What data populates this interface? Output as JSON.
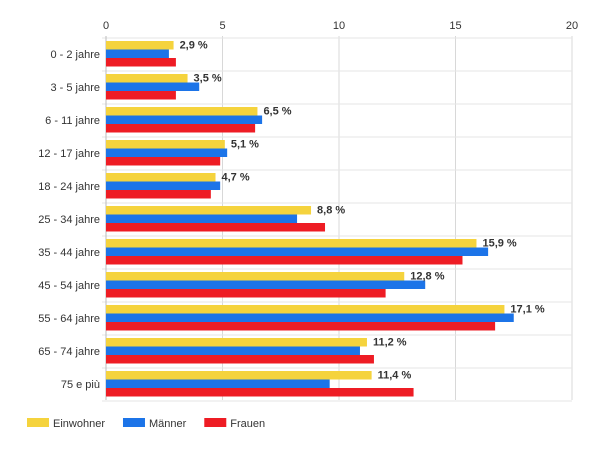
{
  "chart_data": {
    "type": "bar",
    "orientation": "horizontal",
    "categories": [
      "0 - 2 jahre",
      "3 - 5 jahre",
      "6 - 11 jahre",
      "12 - 17 jahre",
      "18 - 24 jahre",
      "25 - 34 jahre",
      "35 - 44 jahre",
      "45 - 54 jahre",
      "55 - 64 jahre",
      "65 - 74 jahre",
      "75 e più"
    ],
    "series": [
      {
        "name": "Einwohner",
        "color": "#f5d33d",
        "values": [
          2.9,
          3.5,
          6.5,
          5.1,
          4.7,
          8.8,
          15.9,
          12.8,
          17.1,
          11.2,
          11.4
        ],
        "labels": [
          "2,9 %",
          "3,5 %",
          "6,5 %",
          "5,1 %",
          "4,7 %",
          "8,8 %",
          "15,9 %",
          "12,8 %",
          "17,1 %",
          "11,2 %",
          "11,4 %"
        ]
      },
      {
        "name": "Männer",
        "color": "#1c74e8",
        "values": [
          2.7,
          4.0,
          6.7,
          5.2,
          4.9,
          8.2,
          16.4,
          13.7,
          17.5,
          10.9,
          9.6
        ]
      },
      {
        "name": "Frauen",
        "color": "#ee1c24",
        "values": [
          3.0,
          3.0,
          6.4,
          4.9,
          4.5,
          9.4,
          15.3,
          12.0,
          16.7,
          11.5,
          13.2
        ]
      }
    ],
    "xlim": [
      0,
      20
    ],
    "x_ticks": [
      "0",
      "5",
      "10",
      "15",
      "20"
    ],
    "x_tick_values": [
      0,
      5,
      10,
      15,
      20
    ],
    "x_axis_position": "top",
    "grid": true,
    "legend": "bottom-left"
  }
}
